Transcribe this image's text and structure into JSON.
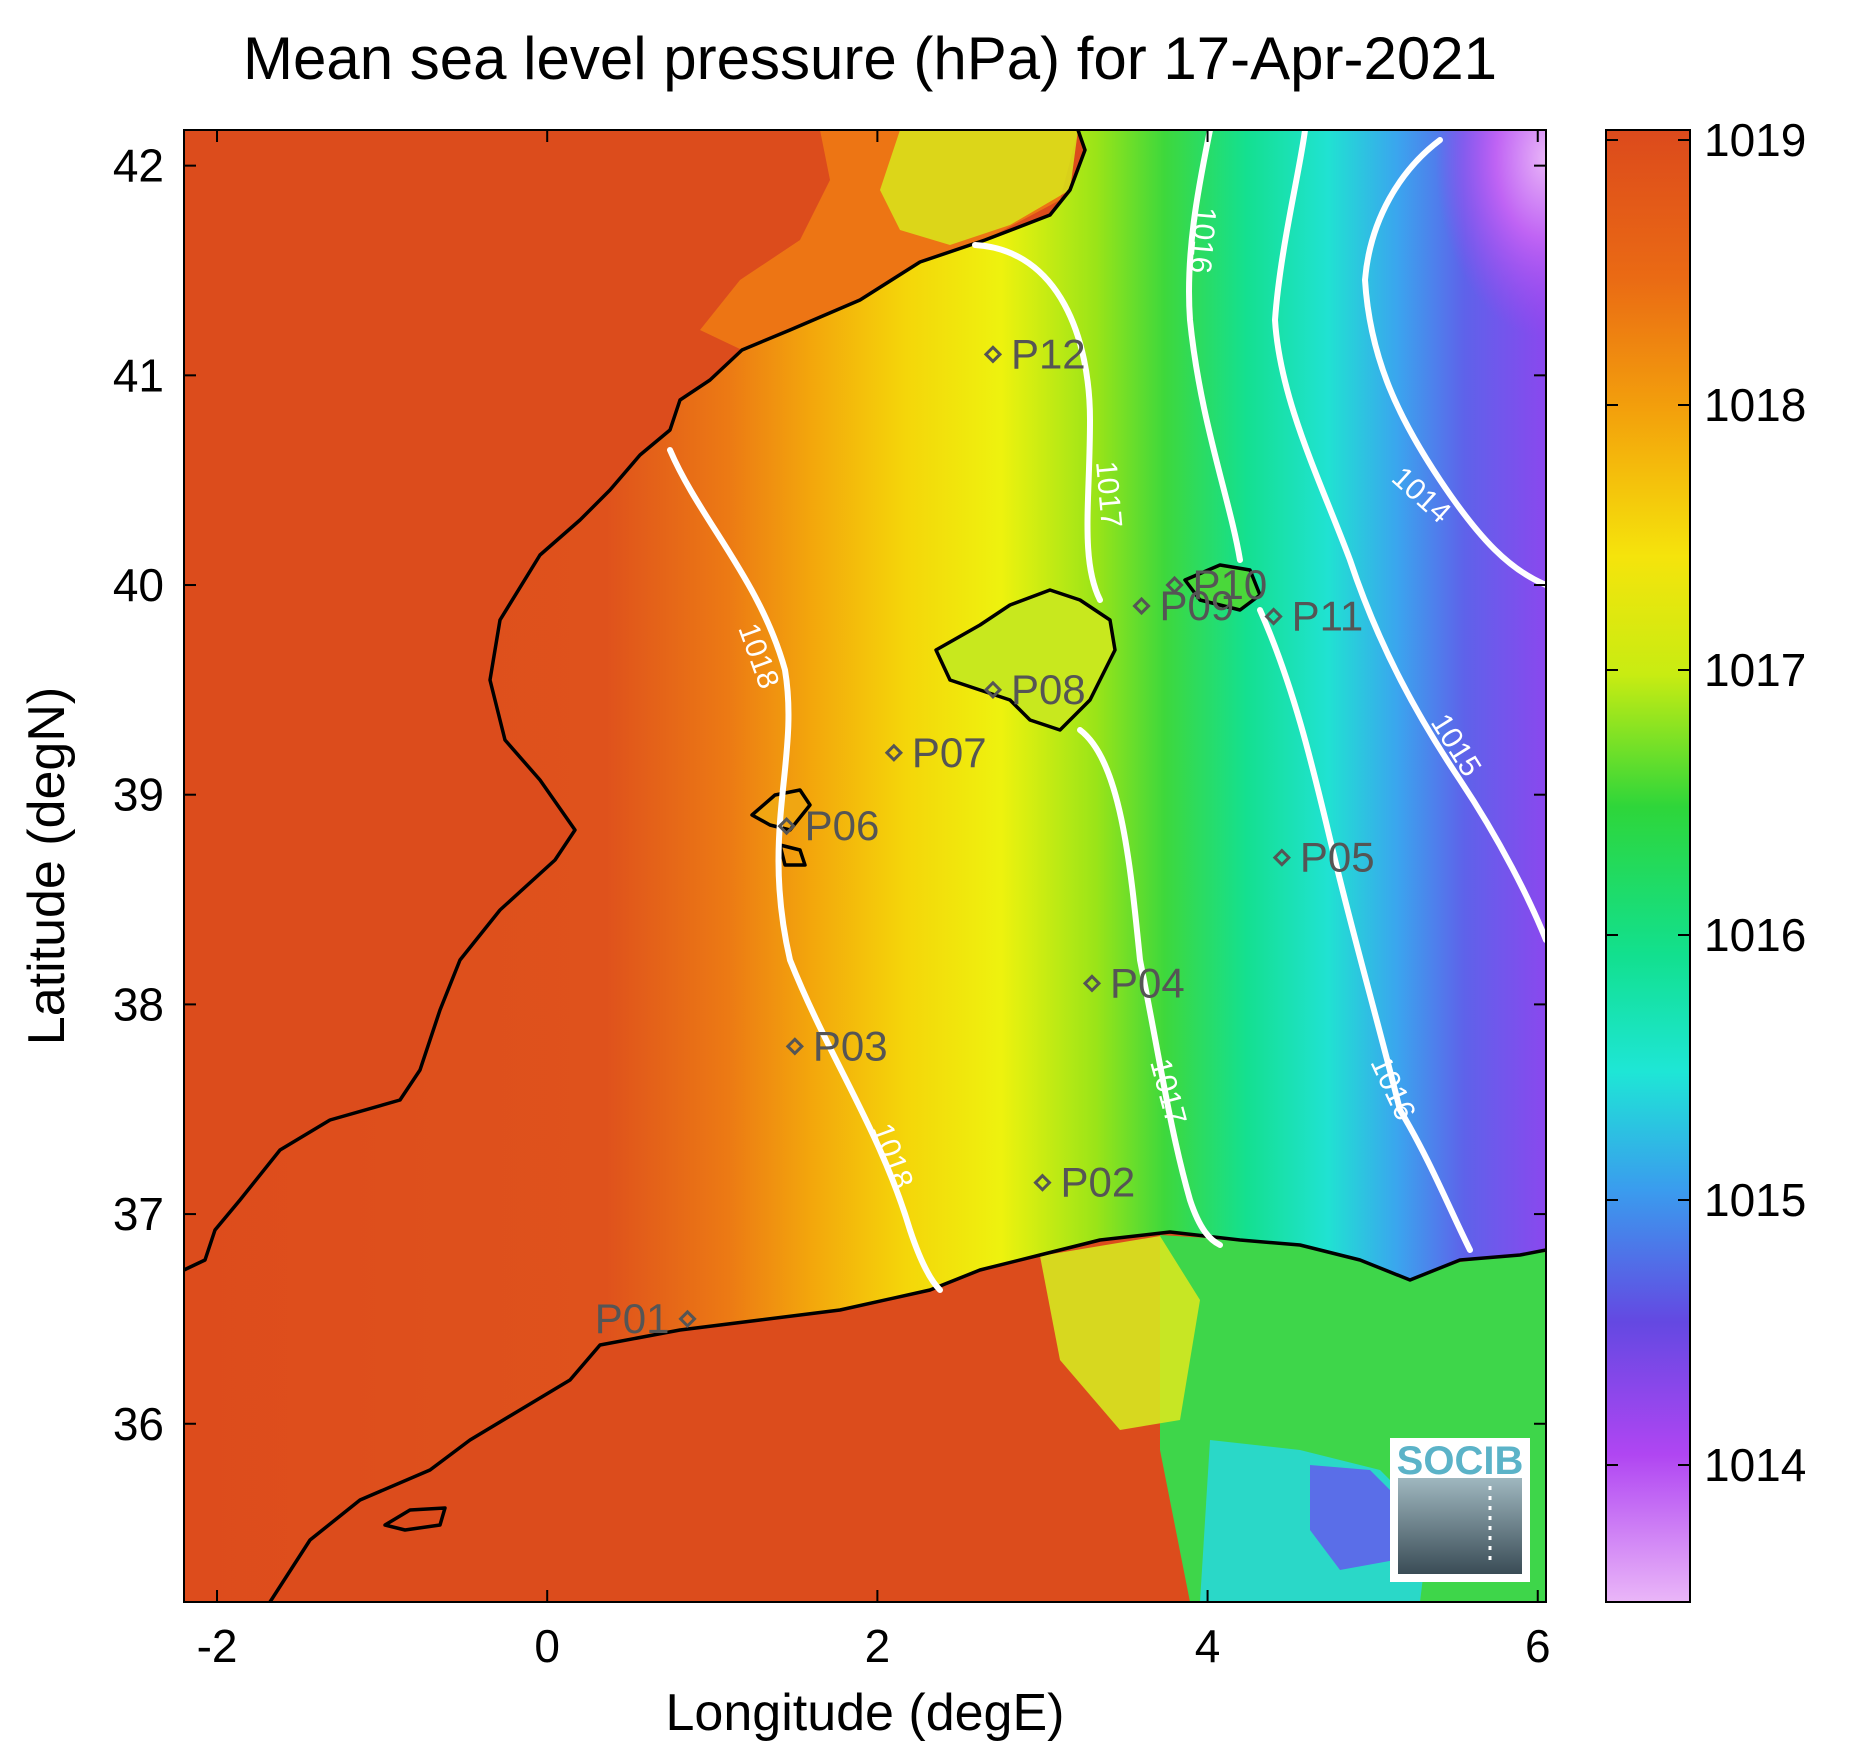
{
  "title": "Mean sea level pressure (hPa) for 17-Apr-2021",
  "xlabel": "Longitude (degE)",
  "ylabel": "Latitude (degN)",
  "xticks": [
    "-2",
    "0",
    "2",
    "4",
    "6"
  ],
  "yticks": [
    "42",
    "41",
    "40",
    "39",
    "38",
    "37",
    "36"
  ],
  "colorbar": {
    "ticks": [
      "1019",
      "1018",
      "1017",
      "1016",
      "1015",
      "1014"
    ],
    "colors": [
      "#e0501e",
      "#f08a10",
      "#f3c608",
      "#f5f20c",
      "#7fe21e",
      "#2cd84a",
      "#16e6a4",
      "#28d6e8",
      "#4a8ef0",
      "#6a4ee6",
      "#a23ef0",
      "#c25ef6",
      "#e6a8f6"
    ]
  },
  "contours": [
    {
      "label": "1018"
    },
    {
      "label": "1018"
    },
    {
      "label": "1017"
    },
    {
      "label": "1017"
    },
    {
      "label": "1016"
    },
    {
      "label": "1016"
    },
    {
      "label": "1015"
    },
    {
      "label": "1014"
    }
  ],
  "stations": [
    {
      "name": "P01",
      "lon": 0.85,
      "lat": 36.5
    },
    {
      "name": "P02",
      "lon": 3.0,
      "lat": 37.15
    },
    {
      "name": "P03",
      "lon": 1.5,
      "lat": 37.8
    },
    {
      "name": "P04",
      "lon": 3.3,
      "lat": 38.1
    },
    {
      "name": "P05",
      "lon": 4.45,
      "lat": 38.7
    },
    {
      "name": "P06",
      "lon": 1.45,
      "lat": 38.85
    },
    {
      "name": "P07",
      "lon": 2.1,
      "lat": 39.2
    },
    {
      "name": "P08",
      "lon": 2.7,
      "lat": 39.5
    },
    {
      "name": "P09",
      "lon": 3.6,
      "lat": 39.9
    },
    {
      "name": "P10",
      "lon": 3.8,
      "lat": 40.0
    },
    {
      "name": "P11",
      "lon": 4.4,
      "lat": 39.85
    },
    {
      "name": "P12",
      "lon": 2.7,
      "lat": 41.1
    }
  ],
  "logo": {
    "text": "SOCIB"
  },
  "colors": {
    "land_high": "#d84a1a",
    "coast": "#000000",
    "contour": "#ffffff",
    "station": "#555555"
  }
}
